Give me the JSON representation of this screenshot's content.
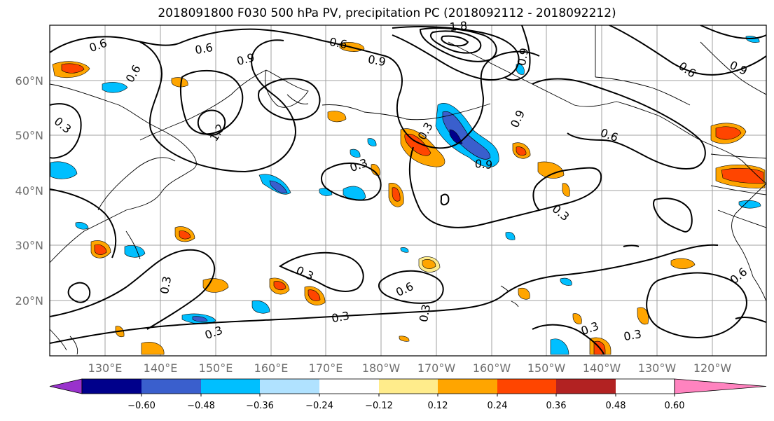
{
  "title": "2018091800 F030 500 hPa PV, precipitation PC (2018092112 - 2018092212)",
  "map": {
    "lat_labels": [
      "60°N",
      "50°N",
      "40°N",
      "30°N",
      "20°N"
    ],
    "lon_labels": [
      "130°E",
      "140°E",
      "150°E",
      "160°E",
      "170°E",
      "180°W",
      "170°W",
      "160°W",
      "150°W",
      "140°W",
      "130°W",
      "120°W"
    ],
    "contour_labels": [
      "0.6",
      "0.6",
      "0.6",
      "0.9",
      "0.3",
      "1.2",
      "0.6",
      "0.9",
      "1.8",
      "0.9",
      "0.6",
      "0.9",
      "0.9",
      "0.6",
      "0.3",
      "0.3",
      "0.3",
      "0.9",
      "0.3",
      "0.3",
      "0.3",
      "0.6",
      "0.3",
      "0.3",
      "0.3",
      "0.6",
      "0.3"
    ],
    "contour_color": "#000000",
    "coast_color": "#000000",
    "grid_color": "#a0a0a0"
  },
  "colorbar": {
    "tick_labels": [
      "−0.60",
      "−0.48",
      "−0.36",
      "−0.24",
      "−0.12",
      "0.12",
      "0.24",
      "0.36",
      "0.48",
      "0.60"
    ],
    "colors": [
      "#9932cc",
      "#00008b",
      "#3a5fcd",
      "#00bfff",
      "#b0e2ff",
      "#ffffff",
      "#ffec8b",
      "#ffa500",
      "#ff4500",
      "#b22222",
      "#ff83bf"
    ]
  }
}
